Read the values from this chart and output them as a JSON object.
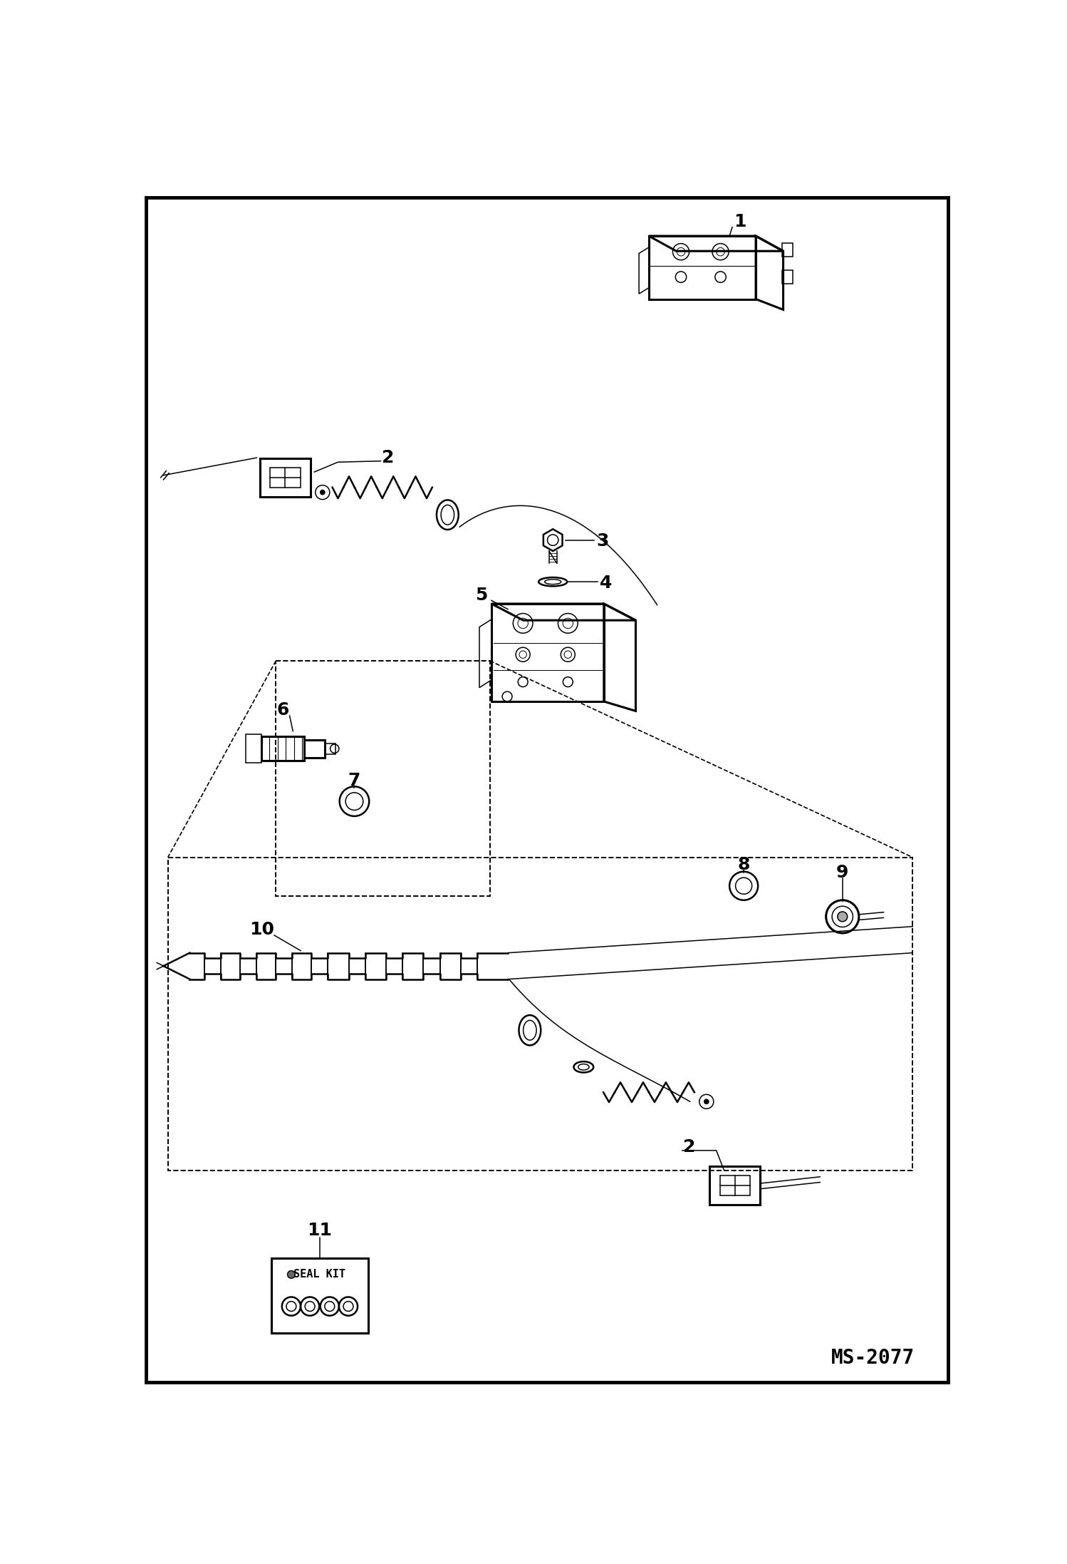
{
  "fig_width": 14.98,
  "fig_height": 21.94,
  "dpi": 100,
  "bg_color": "#ffffff",
  "border_color": "#000000",
  "line_color": "#000000",
  "ms_label": "MS-2077",
  "border_lw": 3.5,
  "label_fontsize": 18,
  "small_fontsize": 11,
  "seal_kit_text": "SEAL KIT"
}
